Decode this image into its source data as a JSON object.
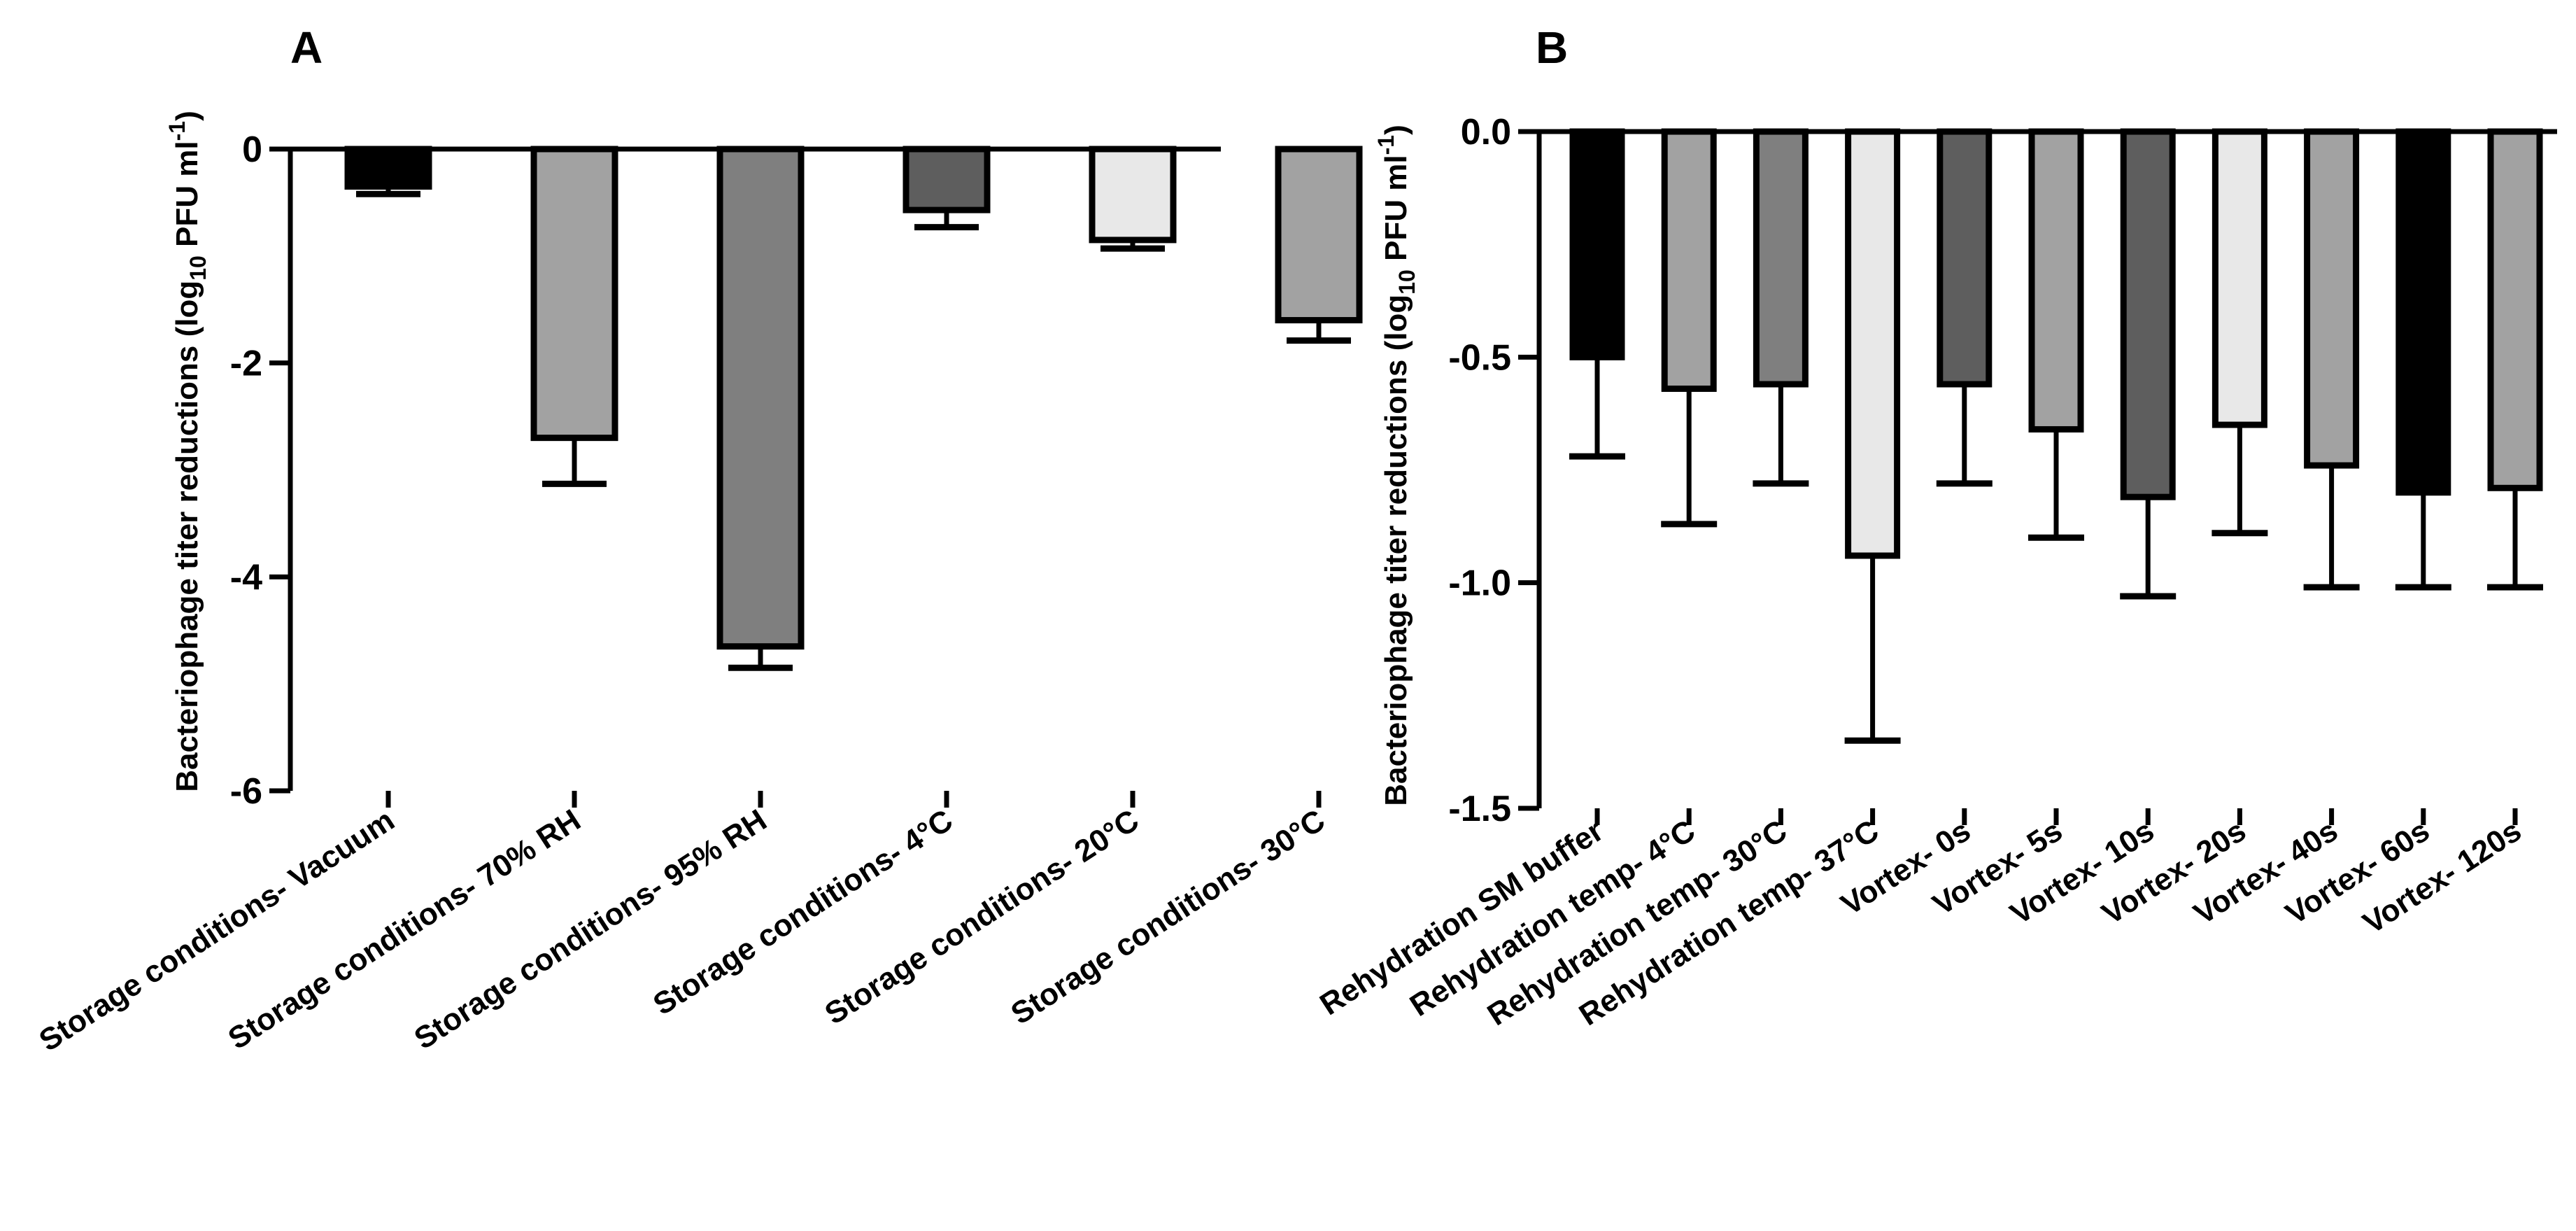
{
  "colors": {
    "black": "#000000",
    "dark_gray": "#5e5e5e",
    "mid_gray": "#7f7f7f",
    "light_gray": "#a2a2a2",
    "very_light_gray": "#e8e8e8",
    "white": "#ffffff"
  },
  "chart_data": [
    {
      "panel": "A",
      "type": "bar",
      "title": "",
      "ylabel_parts": [
        "Bacteriophage titer reductions (log",
        "10",
        " PFU ml",
        "-1",
        ")"
      ],
      "xlabel": "",
      "ylim": [
        -6,
        0
      ],
      "yticks": [
        0,
        -2,
        -4,
        -6
      ],
      "ytick_labels": [
        "0",
        "-2",
        "-4",
        "-6"
      ],
      "categories": [
        "Storage conditions- Vacuum",
        "Storage conditions- 70% RH",
        "Storage conditions- 95% RH",
        "Storage conditions- 4°C",
        "Storage conditions- 20°C",
        "Storage conditions- 30°C"
      ],
      "values": [
        -0.35,
        -2.7,
        -4.65,
        -0.57,
        -0.85,
        -1.6
      ],
      "errors": [
        0.07,
        0.43,
        0.2,
        0.16,
        0.08,
        0.19
      ],
      "bar_colors": [
        "#000000",
        "#a2a2a2",
        "#7f7f7f",
        "#5e5e5e",
        "#e8e8e8",
        "#a2a2a2"
      ]
    },
    {
      "panel": "B",
      "type": "bar",
      "title": "",
      "ylabel_parts": [
        "Bacteriophage titer reductions (log",
        "10",
        " PFU ml",
        "-1",
        ")"
      ],
      "xlabel": "",
      "ylim": [
        -1.5,
        0
      ],
      "yticks": [
        0,
        -0.5,
        -1.0,
        -1.5
      ],
      "ytick_labels": [
        "0.0",
        "-0.5",
        "-1.0",
        "-1.5"
      ],
      "categories": [
        "Rehydration SM buffer",
        "Rehydration temp- 4°C",
        "Rehydration temp- 30°C",
        "Rehydration temp- 37°C",
        "Vortex- 0s",
        "Vortex- 5s",
        "Vortex- 10s",
        "Vortex- 20s",
        "Vortex- 40s",
        "Vortex- 60s",
        "Vortex- 120s"
      ],
      "values": [
        -0.5,
        -0.57,
        -0.56,
        -0.94,
        -0.56,
        -0.66,
        -0.81,
        -0.65,
        -0.74,
        -0.8,
        -0.79
      ],
      "errors": [
        0.22,
        0.3,
        0.22,
        0.41,
        0.22,
        0.24,
        0.22,
        0.24,
        0.27,
        0.21,
        0.22
      ],
      "bar_colors": [
        "#000000",
        "#a2a2a2",
        "#7f7f7f",
        "#e8e8e8",
        "#5e5e5e",
        "#a2a2a2",
        "#5e5e5e",
        "#e8e8e8",
        "#a2a2a2",
        "#000000",
        "#a2a2a2"
      ]
    }
  ]
}
